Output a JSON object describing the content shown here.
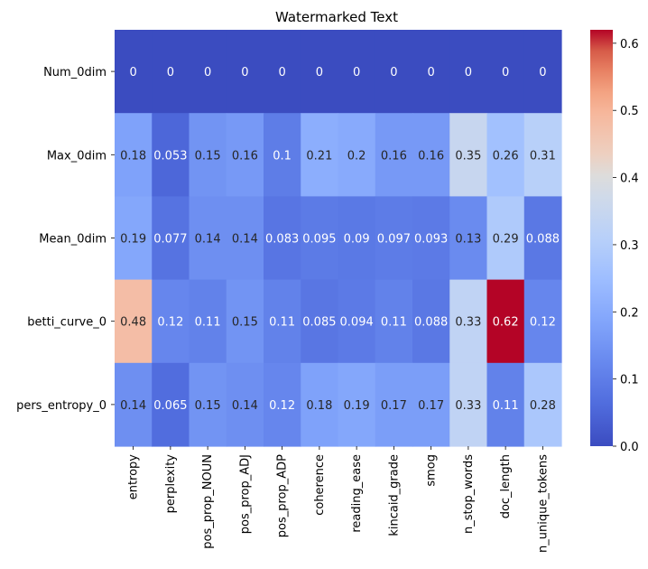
{
  "chart_data": {
    "type": "heatmap",
    "title": "Watermarked Text",
    "rows": [
      "Num_0dim",
      "Max_0dim",
      "Mean_0dim",
      "betti_curve_0",
      "pers_entropy_0"
    ],
    "columns": [
      "entropy",
      "perplexity",
      "pos_prop_NOUN",
      "pos_prop_ADJ",
      "pos_prop_ADP",
      "coherence",
      "reading_ease",
      "kincaid_grade",
      "smog",
      "n_stop_words",
      "doc_length",
      "n_unique_tokens"
    ],
    "values": [
      [
        0,
        0,
        0,
        0,
        0,
        0,
        0,
        0,
        0,
        0,
        0,
        0
      ],
      [
        0.18,
        0.053,
        0.15,
        0.16,
        0.1,
        0.21,
        0.2,
        0.16,
        0.16,
        0.35,
        0.26,
        0.31
      ],
      [
        0.19,
        0.077,
        0.14,
        0.14,
        0.083,
        0.095,
        0.09,
        0.097,
        0.093,
        0.13,
        0.29,
        0.088
      ],
      [
        0.48,
        0.12,
        0.11,
        0.15,
        0.11,
        0.085,
        0.094,
        0.11,
        0.088,
        0.33,
        0.62,
        0.12
      ],
      [
        0.14,
        0.065,
        0.15,
        0.14,
        0.12,
        0.18,
        0.19,
        0.17,
        0.17,
        0.33,
        0.11,
        0.28
      ]
    ],
    "value_labels": [
      [
        "0",
        "0",
        "0",
        "0",
        "0",
        "0",
        "0",
        "0",
        "0",
        "0",
        "0",
        "0"
      ],
      [
        "0.18",
        "0.053",
        "0.15",
        "0.16",
        "0.1",
        "0.21",
        "0.2",
        "0.16",
        "0.16",
        "0.35",
        "0.26",
        "0.31"
      ],
      [
        "0.19",
        "0.077",
        "0.14",
        "0.14",
        "0.083",
        "0.095",
        "0.09",
        "0.097",
        "0.093",
        "0.13",
        "0.29",
        "0.088"
      ],
      [
        "0.48",
        "0.12",
        "0.11",
        "0.15",
        "0.11",
        "0.085",
        "0.094",
        "0.11",
        "0.088",
        "0.33",
        "0.62",
        "0.12"
      ],
      [
        "0.14",
        "0.065",
        "0.15",
        "0.14",
        "0.12",
        "0.18",
        "0.19",
        "0.17",
        "0.17",
        "0.33",
        "0.11",
        "0.28"
      ]
    ],
    "colormap": "coolwarm",
    "vmin": 0,
    "vmax": 0.62,
    "colorbar_ticks": [
      0.0,
      0.1,
      0.2,
      0.3,
      0.4,
      0.5,
      0.6
    ],
    "colorbar_tick_labels": [
      "0.0",
      "0.1",
      "0.2",
      "0.3",
      "0.4",
      "0.5",
      "0.6"
    ],
    "annotated": true,
    "grid": false
  }
}
